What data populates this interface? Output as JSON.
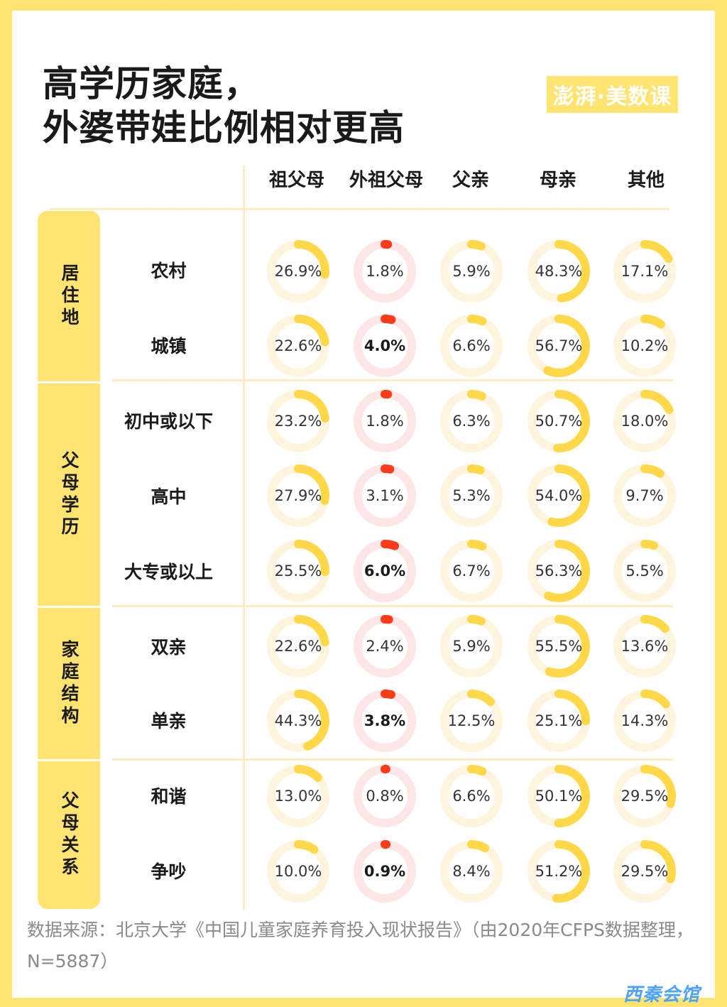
{
  "title": {
    "line1": "高学历家庭，",
    "line2": "外婆带娃比例相对更高"
  },
  "brand": "澎湃·美数课",
  "colors": {
    "background": "#ffe472",
    "ring_yellow": "#ffd84a",
    "ring_yellow_track": "#fff5df",
    "ring_red": "#ff3b1a",
    "ring_red_track": "#fde6e6"
  },
  "chart_data": {
    "type": "table",
    "columns": [
      "祖父母",
      "外祖父母",
      "父亲",
      "母亲",
      "其他"
    ],
    "groups": [
      {
        "label": "居住地",
        "rows": [
          "农村",
          "城镇"
        ]
      },
      {
        "label": "父母学历",
        "rows": [
          "初中或以下",
          "高中",
          "大专或以上"
        ]
      },
      {
        "label": "家庭结构",
        "rows": [
          "双亲",
          "单亲"
        ]
      },
      {
        "label": "父母关系",
        "rows": [
          "和谐",
          "争吵"
        ]
      }
    ],
    "rows": [
      {
        "label": "农村",
        "values": [
          26.9,
          1.8,
          5.9,
          48.3,
          17.1
        ],
        "display": [
          "26.9%",
          "1.8%",
          "5.9%",
          "48.3%",
          "17.1%"
        ],
        "highlight": false
      },
      {
        "label": "城镇",
        "values": [
          22.6,
          4.0,
          6.6,
          56.7,
          10.2
        ],
        "display": [
          "22.6%",
          "4.0%",
          "6.6%",
          "56.7%",
          "10.2%"
        ],
        "highlight": true
      },
      {
        "label": "初中或以下",
        "values": [
          23.2,
          1.8,
          6.3,
          50.7,
          18.0
        ],
        "display": [
          "23.2%",
          "1.8%",
          "6.3%",
          "50.7%",
          "18.0%"
        ],
        "highlight": false
      },
      {
        "label": "高中",
        "values": [
          27.9,
          3.1,
          5.3,
          54.0,
          9.7
        ],
        "display": [
          "27.9%",
          "3.1%",
          "5.3%",
          "54.0%",
          "9.7%"
        ],
        "highlight": false
      },
      {
        "label": "大专或以上",
        "values": [
          25.5,
          6.0,
          6.7,
          56.3,
          5.5
        ],
        "display": [
          "25.5%",
          "6.0%",
          "6.7%",
          "56.3%",
          "5.5%"
        ],
        "highlight": true
      },
      {
        "label": "双亲",
        "values": [
          22.6,
          2.4,
          5.9,
          55.5,
          13.6
        ],
        "display": [
          "22.6%",
          "2.4%",
          "5.9%",
          "55.5%",
          "13.6%"
        ],
        "highlight": false
      },
      {
        "label": "单亲",
        "values": [
          44.3,
          3.8,
          12.5,
          25.1,
          14.3
        ],
        "display": [
          "44.3%",
          "3.8%",
          "12.5%",
          "25.1%",
          "14.3%"
        ],
        "highlight": true
      },
      {
        "label": "和谐",
        "values": [
          13.0,
          0.8,
          6.6,
          50.1,
          29.5
        ],
        "display": [
          "13.0%",
          "0.8%",
          "6.6%",
          "50.1%",
          "29.5%"
        ],
        "highlight": false
      },
      {
        "label": "争吵",
        "values": [
          10.0,
          0.9,
          8.4,
          51.2,
          29.5
        ],
        "display": [
          "10.0%",
          "0.9%",
          "8.4%",
          "51.2%",
          "29.5%"
        ],
        "highlight": true
      }
    ],
    "highlight_column": "外祖父母"
  },
  "source": "数据来源：北京大学《中国儿童家庭养育投入现状报告》（由2020年CFPS数据整理，N=5887）",
  "watermark": "西秦会馆"
}
